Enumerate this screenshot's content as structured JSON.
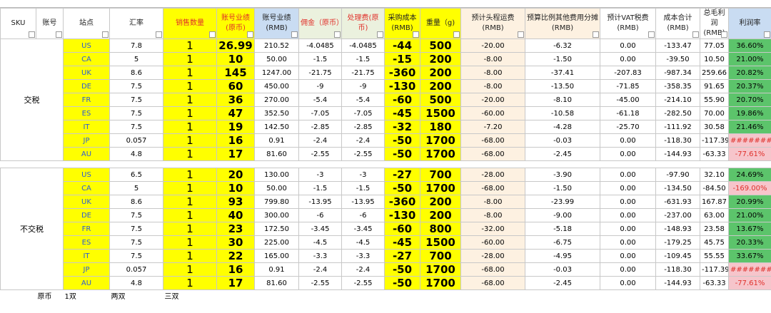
{
  "header": [
    "SKU",
    "账号",
    "站点",
    "汇率",
    "销售数量",
    "账号业绩(原币)",
    "账号业绩(RMB)",
    "佣金（原币）",
    "处理费(原币)",
    "采购成本(RMB)",
    "重量（g)",
    "预计头程运费(RMB)",
    "预算比例其他费用分摊(RMB)",
    "预计VAT税费(RMB)",
    "成本合计(RMB)",
    "总毛利润(RMB)",
    "利润率"
  ],
  "groups": [
    {
      "label": "交税",
      "rows": [
        [
          "US",
          "7.8",
          "1",
          "26.99",
          "210.52",
          "-4.0485",
          "-4.0485",
          "-44",
          "500",
          "-20.00",
          "-6.32",
          "0.00",
          "-133.47",
          "77.05",
          "36.60%"
        ],
        [
          "CA",
          "5",
          "1",
          "10",
          "50.00",
          "-1.5",
          "-1.5",
          "-15",
          "200",
          "-8.00",
          "-1.50",
          "0.00",
          "-39.50",
          "10.50",
          "21.00%"
        ],
        [
          "UK",
          "8.6",
          "1",
          "145",
          "1247.00",
          "-21.75",
          "-21.75",
          "-360",
          "200",
          "-8.00",
          "-37.41",
          "-207.83",
          "-987.34",
          "259.66",
          "20.82%"
        ],
        [
          "DE",
          "7.5",
          "1",
          "60",
          "450.00",
          "-9",
          "-9",
          "-130",
          "200",
          "-8.00",
          "-13.50",
          "-71.85",
          "-358.35",
          "91.65",
          "20.37%"
        ],
        [
          "FR",
          "7.5",
          "1",
          "36",
          "270.00",
          "-5.4",
          "-5.4",
          "-60",
          "500",
          "-20.00",
          "-8.10",
          "-45.00",
          "-214.10",
          "55.90",
          "20.70%"
        ],
        [
          "ES",
          "7.5",
          "1",
          "47",
          "352.50",
          "-7.05",
          "-7.05",
          "-45",
          "1500",
          "-60.00",
          "-10.58",
          "-61.18",
          "-282.50",
          "70.00",
          "19.86%"
        ],
        [
          "IT",
          "7.5",
          "1",
          "19",
          "142.50",
          "-2.85",
          "-2.85",
          "-32",
          "180",
          "-7.20",
          "-4.28",
          "-25.70",
          "-111.92",
          "30.58",
          "21.46%"
        ],
        [
          "JP",
          "0.057",
          "1",
          "16",
          "0.91",
          "-2.4",
          "-2.4",
          "-50",
          "1700",
          "-68.00",
          "-0.03",
          "0.00",
          "-118.30",
          "-117.39",
          "########"
        ],
        [
          "AU",
          "4.8",
          "1",
          "17",
          "81.60",
          "-2.55",
          "-2.55",
          "-50",
          "1700",
          "-68.00",
          "-2.45",
          "0.00",
          "-144.93",
          "-63.33",
          "-77.61%"
        ]
      ]
    },
    {
      "label": "不交税",
      "rows": [
        [
          "US",
          "6.5",
          "1",
          "20",
          "130.00",
          "-3",
          "-3",
          "-27",
          "700",
          "-28.00",
          "-3.90",
          "0.00",
          "-97.90",
          "32.10",
          "24.69%"
        ],
        [
          "CA",
          "5",
          "1",
          "10",
          "50.00",
          "-1.5",
          "-1.5",
          "-50",
          "1700",
          "-68.00",
          "-1.50",
          "0.00",
          "-134.50",
          "-84.50",
          "-169.00%"
        ],
        [
          "UK",
          "8.6",
          "1",
          "93",
          "799.80",
          "-13.95",
          "-13.95",
          "-360",
          "200",
          "-8.00",
          "-23.99",
          "0.00",
          "-631.93",
          "167.87",
          "20.99%"
        ],
        [
          "DE",
          "7.5",
          "1",
          "40",
          "300.00",
          "-6",
          "-6",
          "-130",
          "200",
          "-8.00",
          "-9.00",
          "0.00",
          "-237.00",
          "63.00",
          "21.00%"
        ],
        [
          "FR",
          "7.5",
          "1",
          "23",
          "172.50",
          "-3.45",
          "-3.45",
          "-60",
          "800",
          "-32.00",
          "-5.18",
          "0.00",
          "-148.93",
          "23.58",
          "13.67%"
        ],
        [
          "ES",
          "7.5",
          "1",
          "30",
          "225.00",
          "-4.5",
          "-4.5",
          "-45",
          "1500",
          "-60.00",
          "-6.75",
          "0.00",
          "-179.25",
          "45.75",
          "20.33%"
        ],
        [
          "IT",
          "7.5",
          "1",
          "22",
          "165.00",
          "-3.3",
          "-3.3",
          "-27",
          "700",
          "-28.00",
          "-4.95",
          "0.00",
          "-109.45",
          "55.55",
          "33.67%"
        ],
        [
          "JP",
          "0.057",
          "1",
          "16",
          "0.91",
          "-2.4",
          "-2.4",
          "-50",
          "1700",
          "-68.00",
          "-0.03",
          "0.00",
          "-118.30",
          "-117.39",
          "########"
        ],
        [
          "AU",
          "4.8",
          "1",
          "17",
          "81.60",
          "-2.55",
          "-2.55",
          "-50",
          "1700",
          "-68.00",
          "-2.45",
          "0.00",
          "-144.93",
          "-63.33",
          "-77.61%"
        ]
      ]
    }
  ],
  "footer": [
    "原币",
    "1双",
    "两双",
    "三双"
  ]
}
